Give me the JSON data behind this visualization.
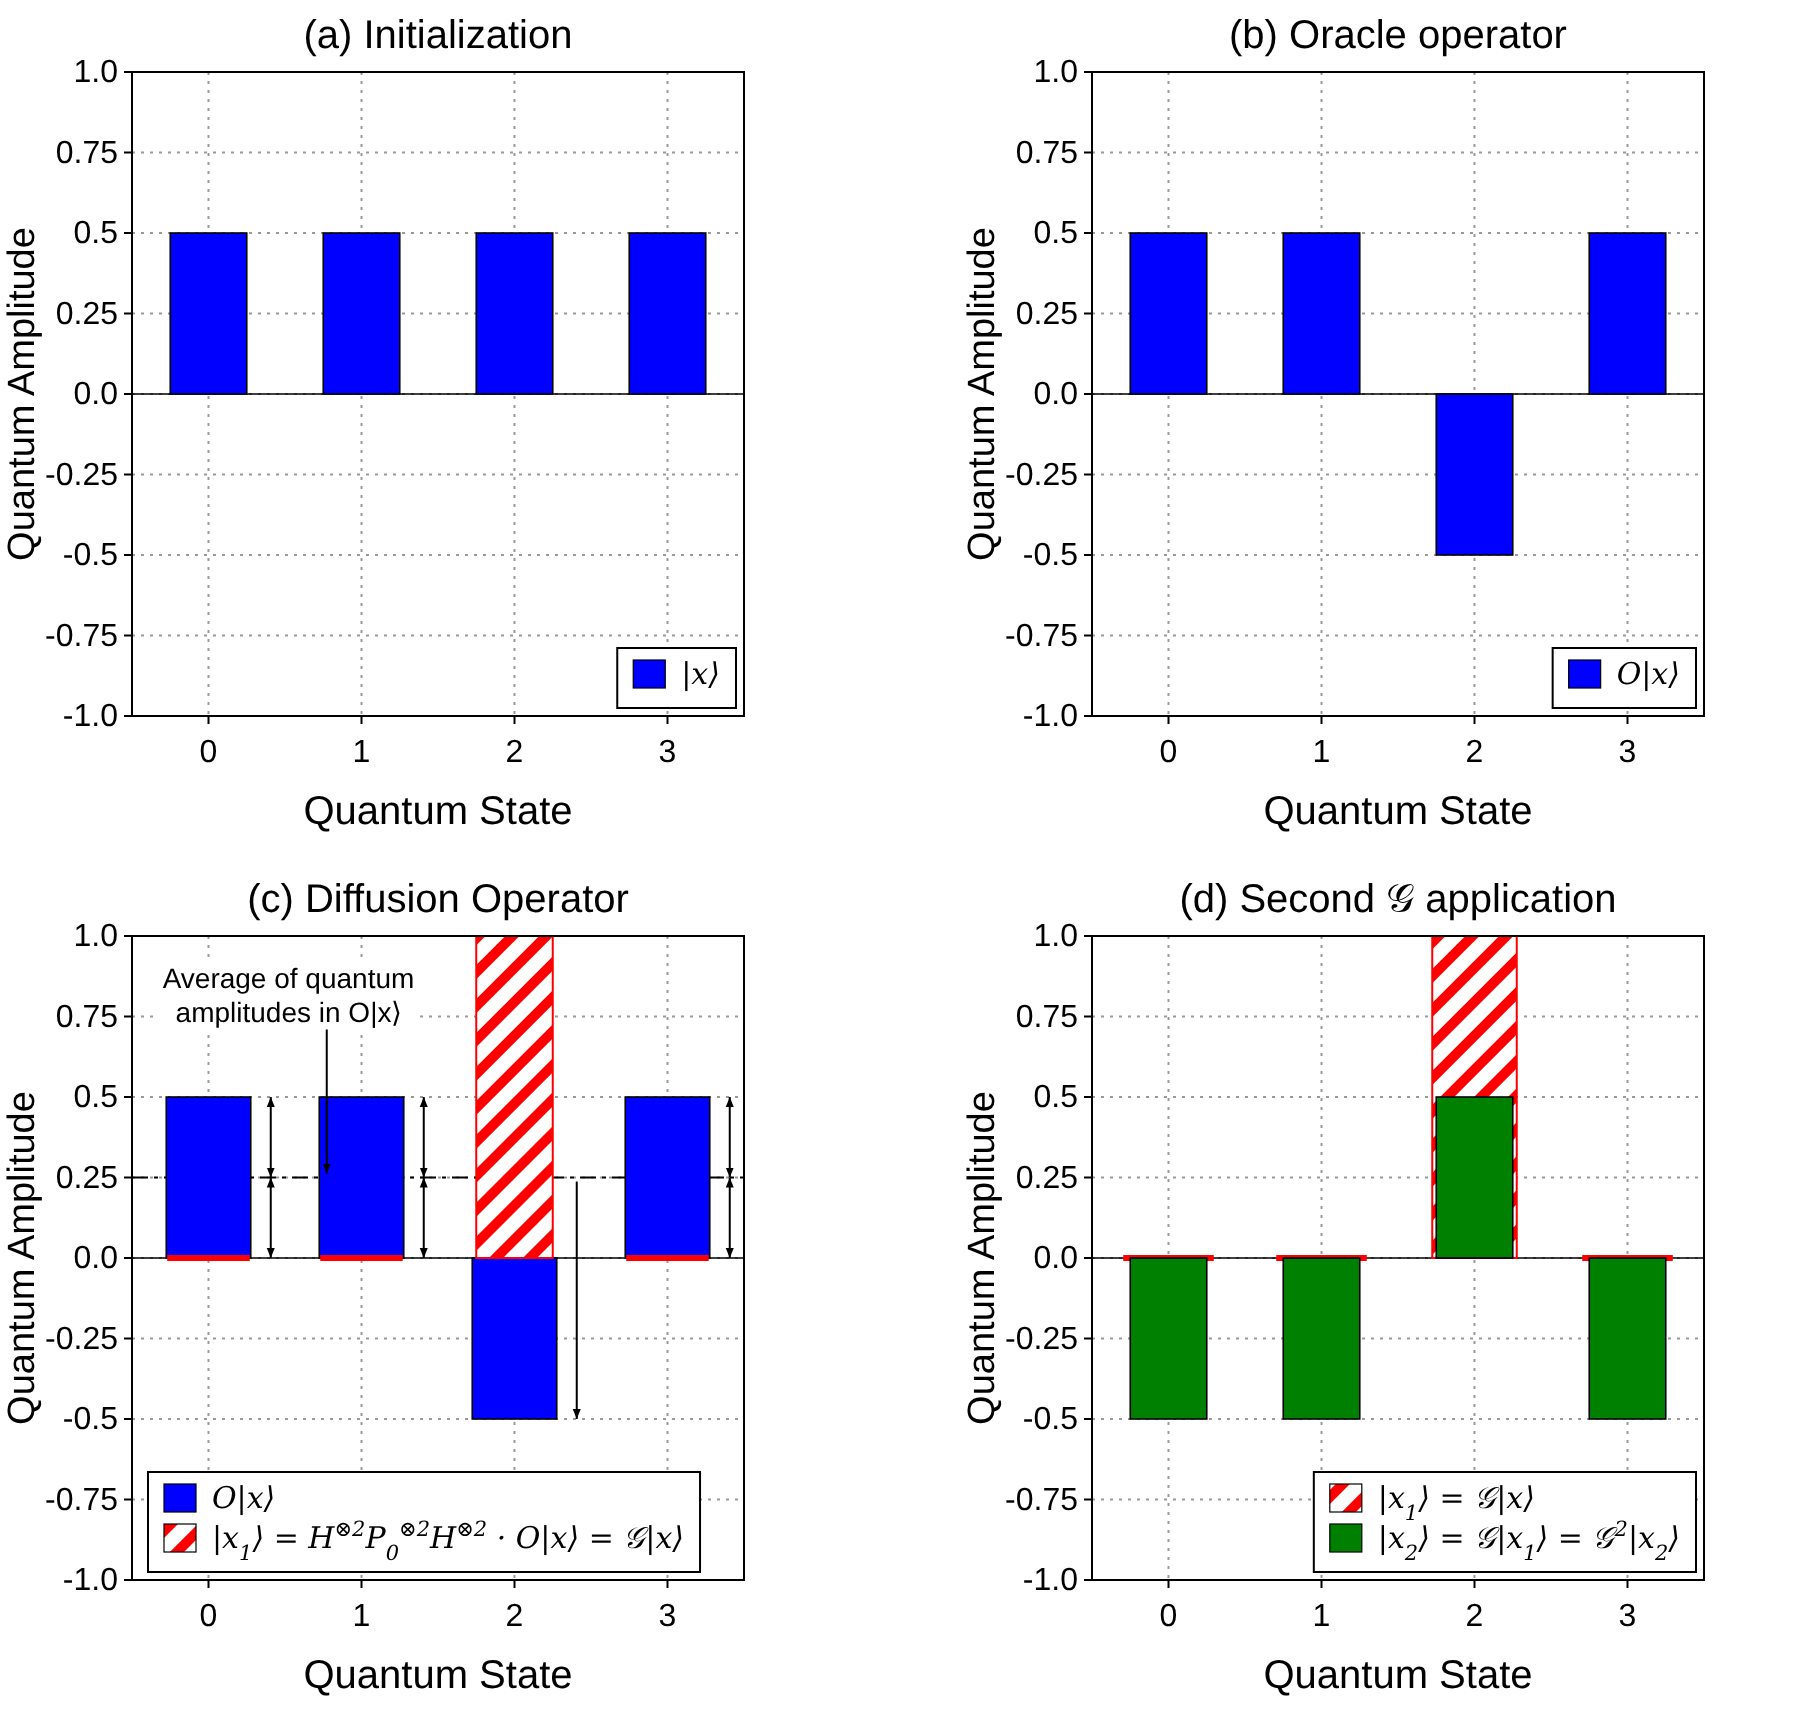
{
  "chart_data": [
    {
      "type": "bar",
      "title": "(a) Initialization",
      "xlabel": "Quantum State",
      "ylabel": "Quantum Amplitude",
      "categories": [
        "0",
        "1",
        "2",
        "3"
      ],
      "series": [
        {
          "name": "|x⟩",
          "color": "#0000ff",
          "values": [
            0.5,
            0.5,
            0.5,
            0.5
          ]
        }
      ],
      "ylim": [
        -1,
        1
      ],
      "yticks": [
        {
          "value": -1,
          "label": "-1.0"
        },
        -0.75,
        {
          "value": -0.5,
          "label": "-0.5"
        },
        -0.25,
        {
          "value": 0,
          "label": "0.0"
        },
        0.25,
        {
          "value": 0.5,
          "label": "0.5"
        },
        0.75,
        {
          "value": 1,
          "label": "1.0"
        }
      ],
      "grid": true,
      "legend": "bottom right"
    },
    {
      "type": "bar",
      "title": "(b) Oracle operator",
      "xlabel": "Quantum State",
      "ylabel": "Quantum Amplitude",
      "categories": [
        "0",
        "1",
        "2",
        "3"
      ],
      "series": [
        {
          "name": "O|x⟩",
          "color": "#0000ff",
          "values": [
            0.5,
            0.5,
            -0.5,
            0.5
          ]
        }
      ],
      "ylim": [
        -1,
        1
      ],
      "yticks": [
        {
          "value": -1,
          "label": "-1.0"
        },
        -0.75,
        {
          "value": -0.5,
          "label": "-0.5"
        },
        -0.25,
        {
          "value": 0,
          "label": "0.0"
        },
        0.25,
        {
          "value": 0.5,
          "label": "0.5"
        },
        0.75,
        {
          "value": 1,
          "label": "1.0"
        }
      ],
      "grid": true,
      "legend": "bottom right"
    },
    {
      "type": "bar",
      "title": "(c) Diffusion Operator",
      "xlabel": "Quantum State",
      "ylabel": "Quantum Amplitude",
      "categories": [
        "0",
        "1",
        "2",
        "3"
      ],
      "series": [
        {
          "name": "O|x⟩",
          "color": "#0000ff",
          "values": [
            0.5,
            0.5,
            -0.5,
            0.5
          ]
        },
        {
          "name": "|x$_{1}$⟩ = H$^{⊗2}$P$_{0}$$^{⊗2}$H$^{⊗2}$ · O|x⟩ = 𝒢|x⟩",
          "color": "#ff0000",
          "values": [
            0,
            0,
            1,
            0
          ]
        }
      ],
      "ylim": [
        -1,
        1
      ],
      "yticks": [
        {
          "value": -1,
          "label": "-1.0"
        },
        -0.75,
        {
          "value": -0.5,
          "label": "-0.5"
        },
        -0.25,
        {
          "value": 0,
          "label": "0.0"
        },
        0.25,
        {
          "value": 0.5,
          "label": "0.5"
        },
        0.75,
        {
          "value": 1,
          "label": "1.0"
        }
      ],
      "grid": true,
      "legend": "bottom",
      "ref_lines": [
        {
          "axis": "y",
          "value": 0.25,
          "label": "Average of quantum amplitudes in O|x⟩",
          "line_style": "dashed"
        }
      ]
    },
    {
      "type": "bar",
      "title": "(d) Second 𝒢 application",
      "xlabel": "Quantum State",
      "ylabel": "Quantum Amplitude",
      "categories": [
        "0",
        "1",
        "2",
        "3"
      ],
      "series": [
        {
          "name": "|x$_{1}$⟩ = 𝒢|x⟩",
          "color": "#ff0000",
          "values": [
            0,
            0,
            1,
            0
          ]
        },
        {
          "name": "|x$_{2}$⟩ = 𝒢|x$_{1}$⟩ = 𝒢$^{2}$|x$_{2}$⟩",
          "color": "#008000",
          "values": [
            -0.5,
            -0.5,
            0.5,
            -0.5
          ]
        }
      ],
      "ylim": [
        -1,
        1
      ],
      "yticks": [
        {
          "value": -1,
          "label": "-1.0"
        },
        -0.75,
        {
          "value": -0.5,
          "label": "-0.5"
        },
        -0.25,
        {
          "value": 0,
          "label": "0.0"
        },
        0.25,
        {
          "value": 0.5,
          "label": "0.5"
        },
        0.75,
        {
          "value": 1,
          "label": "1.0"
        }
      ],
      "grid": true,
      "legend": "bottom right"
    }
  ]
}
